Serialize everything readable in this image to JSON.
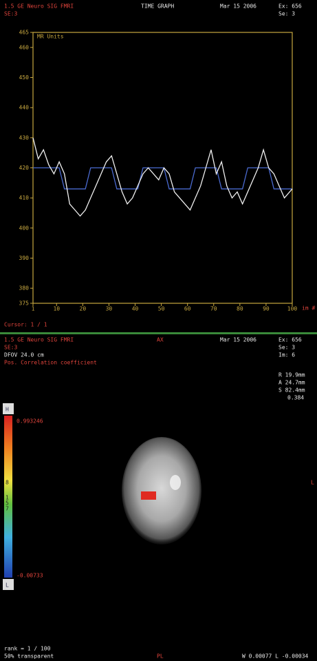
{
  "graph_header": {
    "scanner": "1.5 GE Neuro SIG FMRI",
    "series": "SE:3",
    "mode": "TIME GRAPH",
    "date": "Mar 15 2006",
    "exam": "Ex: 656",
    "se": "Se: 3",
    "cursor": "Cursor: 1 / 1"
  },
  "chart_data": {
    "type": "line",
    "ylabel": "MR Units",
    "xlabel": "im #",
    "x": [
      1,
      3,
      5,
      7,
      9,
      11,
      13,
      15,
      17,
      19,
      21,
      23,
      25,
      27,
      29,
      31,
      33,
      35,
      37,
      39,
      41,
      43,
      45,
      47,
      49,
      51,
      53,
      55,
      57,
      59,
      61,
      63,
      65,
      67,
      69,
      71,
      73,
      75,
      77,
      79,
      81,
      83,
      85,
      87,
      89,
      91,
      93,
      95,
      97,
      99,
      100
    ],
    "series": [
      {
        "color": "#f0f0f0",
        "values": [
          430,
          423,
          426,
          421,
          418,
          422,
          418,
          408,
          406,
          404,
          406,
          410,
          414,
          418,
          422,
          424,
          418,
          412,
          408,
          410,
          414,
          418,
          420,
          418,
          416,
          420,
          418,
          412,
          410,
          408,
          406,
          410,
          414,
          420,
          426,
          418,
          422,
          414,
          410,
          412,
          408,
          412,
          416,
          420,
          426,
          420,
          418,
          414,
          410,
          412,
          413
        ]
      },
      {
        "color": "#4a6ad0",
        "values": [
          420,
          420,
          420,
          420,
          420,
          420,
          413,
          413,
          413,
          413,
          413,
          420,
          420,
          420,
          420,
          420,
          413,
          413,
          413,
          413,
          413,
          420,
          420,
          420,
          420,
          420,
          413,
          413,
          413,
          413,
          413,
          420,
          420,
          420,
          420,
          420,
          413,
          413,
          413,
          413,
          413,
          420,
          420,
          420,
          420,
          420,
          413,
          413,
          413,
          413,
          413
        ]
      }
    ],
    "xlim": [
      1,
      100
    ],
    "ylim": [
      375,
      465
    ],
    "xticks": [
      1,
      10,
      20,
      30,
      40,
      50,
      60,
      70,
      80,
      90,
      100
    ],
    "yticks": [
      375,
      380,
      390,
      400,
      410,
      420,
      430,
      440,
      450,
      460,
      465
    ],
    "axis_color": "#c8a840"
  },
  "image_view": {
    "scanner": "1.5 GE Neuro SIG FMRI",
    "plane": "AX",
    "date": "Mar 15 2006",
    "exam": "Ex: 656",
    "se": "Se: 3",
    "im": "Im: 6",
    "series": "SE:3",
    "dfov": "DFOV 24.0 cm",
    "map": "Pos. Correlation coefficient",
    "r": "R 19.9mm",
    "a": "A 24.7mm",
    "s": "S 82.4mm",
    "corr": "0.384",
    "bar_top": "H",
    "bar_bottom": "L",
    "bar_max": "0.993246",
    "bar_min": "-0.00733",
    "bar_marks": [
      "8",
      "1",
      "5",
      "7"
    ],
    "side": "L",
    "rank": "rank = 1 / 100",
    "transparency": "50% transparent",
    "orient": "PL",
    "window": "W 0.00077 L -0.00034"
  }
}
